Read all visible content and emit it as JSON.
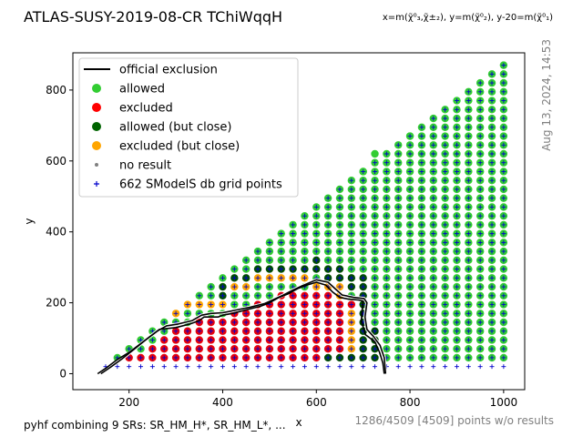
{
  "chart_data": {
    "type": "scatter",
    "title": "ATLAS-SUSY-2019-08-CR TChiWqqH",
    "axis_note": "x=m(χ̃⁰₃,χ̃±₂), y=m(χ̃⁰₂), y-20=m(χ̃⁰₁)",
    "xlabel": "x",
    "ylabel": "y",
    "xlim": [
      80,
      1045
    ],
    "ylim": [
      -45,
      905
    ],
    "xticks": [
      200,
      400,
      600,
      800,
      1000
    ],
    "yticks": [
      0,
      200,
      400,
      600,
      800
    ],
    "grid": false,
    "legend_position": "upper-left",
    "timestamp": "Aug 13, 2024, 14:53",
    "footer_left": "pyhf combining 9 SRs: SR_HM_H*, SR_HM_L*, ...",
    "footer_right": "1286/4509 [4509] points w/o results",
    "legend": [
      {
        "label": "official exclusion",
        "kind": "line",
        "color": "#000000"
      },
      {
        "label": "allowed",
        "kind": "dot",
        "color": "#32cd32"
      },
      {
        "label": "excluded",
        "kind": "dot",
        "color": "#ff0000"
      },
      {
        "label": "allowed (but close)",
        "kind": "dot",
        "color": "#006400"
      },
      {
        "label": "excluded (but close)",
        "kind": "dot",
        "color": "#ffa500"
      },
      {
        "label": "no result",
        "kind": "smalldot",
        "color": "#808080"
      },
      {
        "label": "662 SModelS db grid points",
        "kind": "plus",
        "color": "#0000cc"
      }
    ],
    "colors": {
      "allowed": "#32cd32",
      "excluded": "#e8000b",
      "allowed_close": "#004d00",
      "excluded_close": "#ffa500",
      "grid_points": "#0000cc",
      "exclusion_line": "#000000"
    },
    "grid_x_range": [
      150,
      1000
    ],
    "grid_x_step": 25,
    "grid_y_start": 20,
    "grid_y_step": 25,
    "grid_diagonal_offset": -130,
    "excluded_region": [
      [
        150,
        20
      ],
      [
        200,
        45
      ],
      [
        250,
        80
      ],
      [
        300,
        120
      ],
      [
        350,
        150
      ],
      [
        400,
        165
      ],
      [
        450,
        185
      ],
      [
        500,
        210
      ],
      [
        550,
        235
      ],
      [
        600,
        250
      ],
      [
        650,
        215
      ],
      [
        690,
        210
      ],
      [
        700,
        180
      ],
      [
        700,
        100
      ],
      [
        710,
        40
      ],
      [
        720,
        20
      ],
      [
        150,
        20
      ]
    ],
    "excluded_close_points": [
      [
        425,
        245
      ],
      [
        450,
        245
      ],
      [
        475,
        270
      ],
      [
        500,
        270
      ],
      [
        525,
        270
      ],
      [
        550,
        270
      ],
      [
        575,
        270
      ],
      [
        600,
        245
      ],
      [
        625,
        245
      ],
      [
        650,
        220
      ],
      [
        650,
        245
      ],
      [
        675,
        170
      ],
      [
        675,
        145
      ],
      [
        675,
        120
      ],
      [
        675,
        95
      ],
      [
        675,
        70
      ],
      [
        300,
        170
      ],
      [
        325,
        195
      ],
      [
        350,
        195
      ],
      [
        375,
        195
      ],
      [
        400,
        195
      ]
    ],
    "allowed_close_points": [
      [
        400,
        220
      ],
      [
        400,
        245
      ],
      [
        425,
        270
      ],
      [
        450,
        270
      ],
      [
        475,
        295
      ],
      [
        500,
        295
      ],
      [
        525,
        295
      ],
      [
        550,
        295
      ],
      [
        575,
        295
      ],
      [
        600,
        295
      ],
      [
        600,
        320
      ],
      [
        625,
        270
      ],
      [
        625,
        295
      ],
      [
        650,
        270
      ],
      [
        650,
        295
      ],
      [
        675,
        245
      ],
      [
        675,
        270
      ],
      [
        700,
        245
      ],
      [
        700,
        270
      ],
      [
        700,
        220
      ],
      [
        700,
        195
      ],
      [
        700,
        95
      ],
      [
        700,
        70
      ],
      [
        700,
        45
      ],
      [
        675,
        45
      ],
      [
        700,
        120
      ],
      [
        700,
        145
      ],
      [
        700,
        170
      ],
      [
        725,
        120
      ],
      [
        725,
        95
      ],
      [
        725,
        70
      ],
      [
        725,
        45
      ],
      [
        650,
        45
      ],
      [
        625,
        45
      ]
    ],
    "extra_allowed_points": [
      [
        700,
        570
      ],
      [
        725,
        620
      ],
      [
        800,
        670
      ],
      [
        800,
        245
      ],
      [
        750,
        345
      ]
    ],
    "exclusion_curve": [
      [
        133,
        0
      ],
      [
        150,
        15
      ],
      [
        175,
        40
      ],
      [
        200,
        60
      ],
      [
        225,
        85
      ],
      [
        250,
        110
      ],
      [
        265,
        125
      ],
      [
        300,
        130
      ],
      [
        330,
        140
      ],
      [
        350,
        150
      ],
      [
        360,
        160
      ],
      [
        375,
        160
      ],
      [
        390,
        160
      ],
      [
        400,
        165
      ],
      [
        420,
        170
      ],
      [
        450,
        180
      ],
      [
        480,
        190
      ],
      [
        500,
        200
      ],
      [
        520,
        215
      ],
      [
        540,
        225
      ],
      [
        560,
        240
      ],
      [
        580,
        250
      ],
      [
        600,
        258
      ],
      [
        620,
        250
      ],
      [
        635,
        230
      ],
      [
        650,
        215
      ],
      [
        670,
        210
      ],
      [
        690,
        208
      ],
      [
        700,
        205
      ],
      [
        698,
        180
      ],
      [
        696,
        150
      ],
      [
        705,
        110
      ],
      [
        725,
        90
      ],
      [
        735,
        60
      ],
      [
        742,
        30
      ],
      [
        745,
        0
      ]
    ],
    "exclusion_curve_outer": [
      [
        140,
        0
      ],
      [
        160,
        18
      ],
      [
        185,
        42
      ],
      [
        210,
        68
      ],
      [
        235,
        95
      ],
      [
        260,
        120
      ],
      [
        280,
        135
      ],
      [
        305,
        140
      ],
      [
        335,
        150
      ],
      [
        355,
        165
      ],
      [
        375,
        170
      ],
      [
        400,
        172
      ],
      [
        430,
        180
      ],
      [
        460,
        188
      ],
      [
        490,
        198
      ],
      [
        510,
        210
      ],
      [
        530,
        222
      ],
      [
        550,
        236
      ],
      [
        570,
        248
      ],
      [
        600,
        265
      ],
      [
        625,
        258
      ],
      [
        640,
        240
      ],
      [
        655,
        222
      ],
      [
        680,
        215
      ],
      [
        702,
        212
      ],
      [
        708,
        200
      ],
      [
        704,
        160
      ],
      [
        708,
        125
      ],
      [
        722,
        105
      ],
      [
        736,
        80
      ],
      [
        745,
        45
      ],
      [
        748,
        0
      ]
    ]
  }
}
